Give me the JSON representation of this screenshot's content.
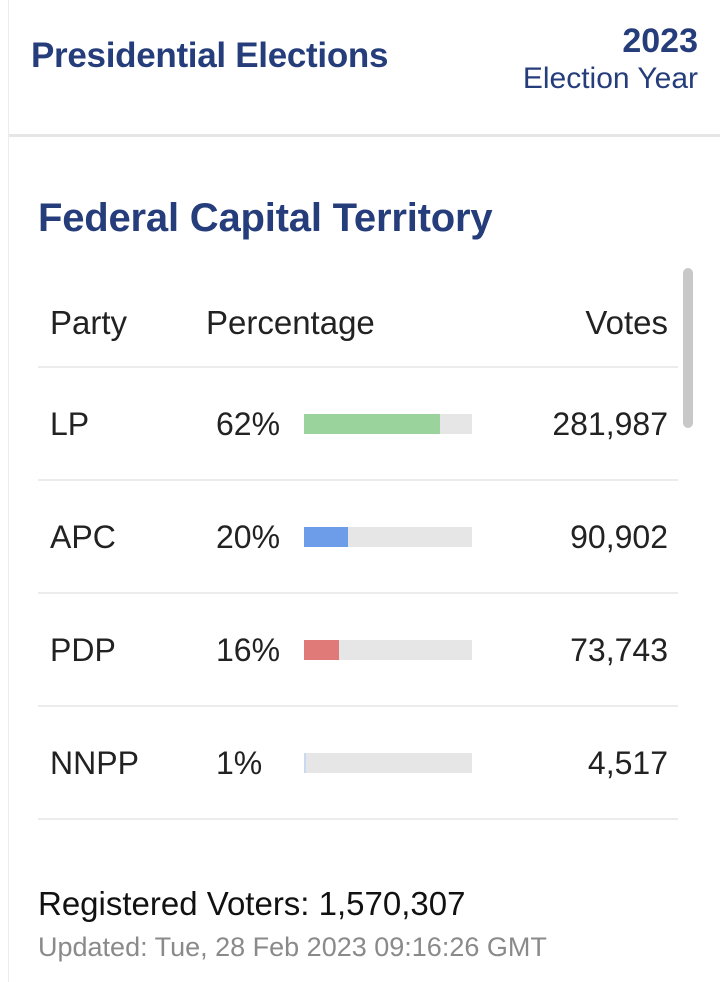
{
  "header": {
    "title": "Presidential Elections",
    "year": "2023",
    "year_label": "Election Year"
  },
  "territory": "Federal Capital Territory",
  "table": {
    "columns": {
      "party": "Party",
      "percentage": "Percentage",
      "votes": "Votes"
    },
    "rows": [
      {
        "party": "LP",
        "percentage": "62%",
        "share": 0.62,
        "votes": "281,987",
        "color": "#9ad39c"
      },
      {
        "party": "APC",
        "percentage": "20%",
        "share": 0.2,
        "votes": "90,902",
        "color": "#6d9ce8"
      },
      {
        "party": "PDP",
        "percentage": "16%",
        "share": 0.16,
        "votes": "73,743",
        "color": "#df7a78"
      },
      {
        "party": "NNPP",
        "percentage": "1%",
        "share": 0.01,
        "votes": "4,517",
        "color": "#c9d9f1"
      }
    ]
  },
  "footer": {
    "registered": "Registered Voters: 1,570,307",
    "updated": "Updated: Tue, 28 Feb 2023 09:16:26 GMT"
  }
}
